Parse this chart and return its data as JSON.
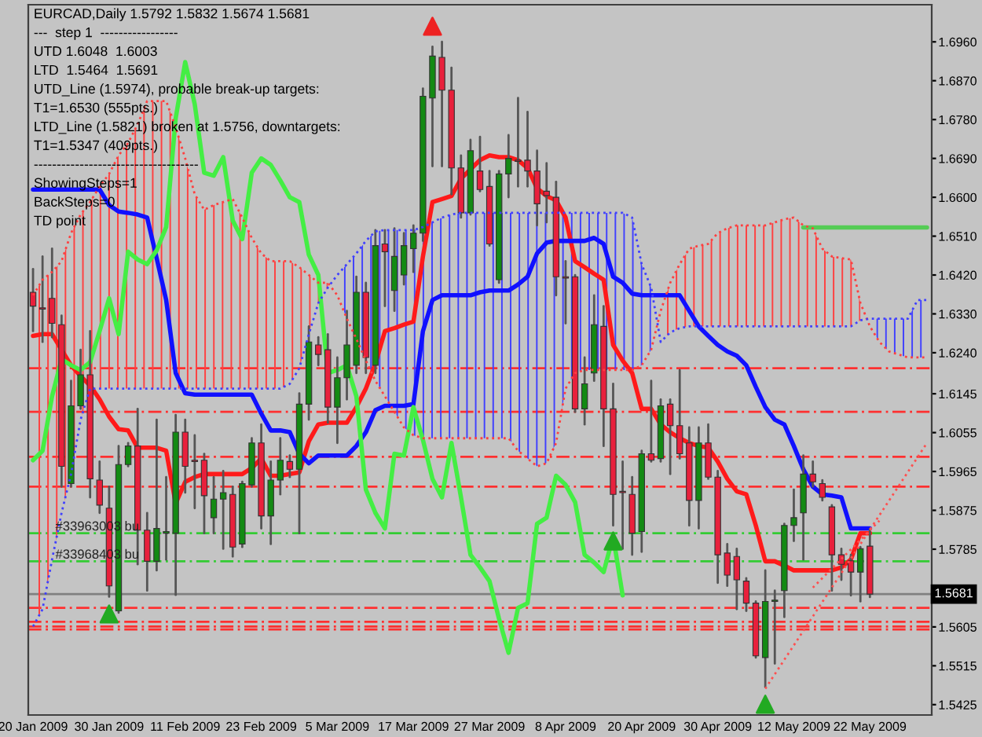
{
  "chart_data": {
    "type": "candlestick",
    "title": "EURCAD,Daily 1.5792 1.5832 1.5674 1.5681",
    "annotations": [
      "---  step 1  -----------------",
      "UTD 1.6048  1.6003",
      "LTD  1.5464  1.5691",
      "UTD_Line (1.5974), probable break-up targets:",
      "T1=1.6530 (555pts.)",
      "LTD_Line (1.5821) broken at 1.5756, downtargets:",
      "T1=1.5347 (409pts.)",
      "------------------------------------",
      "ShowingSteps=1",
      "BackSteps=0",
      "TD point",
      {
        "text": "#33963003 bu",
        "y": 1.5822
      },
      {
        "text": "#33968403 bu",
        "y": 1.5757
      }
    ],
    "categories": [
      "20 Jan 2009",
      null,
      null,
      null,
      null,
      null,
      null,
      null,
      "30 Jan 2009",
      null,
      null,
      null,
      null,
      null,
      null,
      null,
      "11 Feb 2009",
      null,
      null,
      null,
      null,
      null,
      null,
      null,
      "23 Feb 2009",
      null,
      null,
      null,
      null,
      null,
      null,
      null,
      "5 Mar 2009",
      null,
      null,
      null,
      null,
      null,
      null,
      null,
      "17 Mar 2009",
      null,
      null,
      null,
      null,
      null,
      null,
      null,
      "27 Mar 2009",
      null,
      null,
      null,
      null,
      null,
      null,
      null,
      "8 Apr 2009",
      null,
      null,
      null,
      null,
      null,
      null,
      null,
      "20 Apr 2009",
      null,
      null,
      null,
      null,
      null,
      null,
      null,
      "30 Apr 2009",
      null,
      null,
      null,
      null,
      null,
      null,
      null,
      "12 May 2009",
      null,
      null,
      null,
      null,
      null,
      null,
      null,
      "22 May 2009",
      null,
      null,
      null,
      null,
      null,
      null
    ],
    "ohlc": [
      [
        1.638,
        1.6434,
        1.629,
        1.6348
      ],
      [
        1.6344,
        1.6463,
        1.6265,
        1.6341
      ],
      [
        1.6366,
        1.6481,
        1.6276,
        1.6308
      ],
      [
        1.6305,
        1.6326,
        1.593,
        1.5977
      ],
      [
        1.5937,
        1.6175,
        1.593,
        1.6117
      ],
      [
        1.6117,
        1.6247,
        1.611,
        1.6189
      ],
      [
        1.6189,
        1.629,
        1.5905,
        1.5948
      ],
      [
        1.5945,
        1.5988,
        1.5869,
        1.5887
      ],
      [
        1.588,
        1.593,
        1.5675,
        1.57
      ],
      [
        1.5642,
        1.6024,
        1.5638,
        1.5981
      ],
      [
        1.5981,
        1.6031,
        1.5977,
        1.6024
      ],
      [
        1.6024,
        1.611,
        1.575,
        1.5829
      ],
      [
        1.5829,
        1.5869,
        1.5689,
        1.5757
      ],
      [
        1.5757,
        1.6085,
        1.5736,
        1.5833
      ],
      [
        1.5822,
        1.5952,
        1.5761,
        1.5826
      ],
      [
        1.5822,
        1.6096,
        1.5679,
        1.6056
      ],
      [
        1.6056,
        1.6085,
        1.5916,
        1.5977
      ],
      [
        1.5991,
        1.6049,
        1.588,
        1.5988
      ],
      [
        1.5991,
        1.6006,
        1.5822,
        1.5909
      ],
      [
        1.5858,
        1.5952,
        1.5822,
        1.5901
      ],
      [
        1.5901,
        1.5966,
        1.5786,
        1.5916
      ],
      [
        1.5912,
        1.593,
        1.5768,
        1.579
      ],
      [
        1.5797,
        1.5941,
        1.579,
        1.5937
      ],
      [
        1.5934,
        1.6042,
        1.593,
        1.6031
      ],
      [
        1.6031,
        1.6074,
        1.5833,
        1.5862
      ],
      [
        1.5862,
        1.5988,
        1.5797,
        1.5945
      ],
      [
        1.5945,
        1.6042,
        1.5912,
        1.5991
      ],
      [
        1.5988,
        1.6002,
        1.5952,
        1.597
      ],
      [
        1.597,
        1.6146,
        1.5822,
        1.6121
      ],
      [
        1.6121,
        1.6301,
        1.6085,
        1.6265
      ],
      [
        1.6258,
        1.6276,
        1.6211,
        1.6236
      ],
      [
        1.6247,
        1.6283,
        1.6078,
        1.6114
      ],
      [
        1.6114,
        1.6229,
        1.6031,
        1.6182
      ],
      [
        1.6182,
        1.6337,
        1.6132,
        1.6258
      ],
      [
        1.6211,
        1.6416,
        1.6193,
        1.638
      ],
      [
        1.638,
        1.6402,
        1.6193,
        1.6229
      ],
      [
        1.6211,
        1.6524,
        1.6193,
        1.6488
      ],
      [
        1.6492,
        1.6524,
        1.6348,
        1.6474
      ],
      [
        1.6384,
        1.6528,
        1.6337,
        1.6463
      ],
      [
        1.642,
        1.6517,
        1.6398,
        1.6488
      ],
      [
        1.6481,
        1.6535,
        1.6427,
        1.6517
      ],
      [
        1.6517,
        1.6852,
        1.6499,
        1.6834
      ],
      [
        1.683,
        1.6949,
        1.6672,
        1.6927
      ],
      [
        1.6924,
        1.696,
        1.6672,
        1.6848
      ],
      [
        1.6848,
        1.69,
        1.6607,
        1.6668
      ],
      [
        1.6668,
        1.6697,
        1.6553,
        1.6564
      ],
      [
        1.6564,
        1.6733,
        1.656,
        1.6708
      ],
      [
        1.6661,
        1.674,
        1.6614,
        1.6618
      ],
      [
        1.6625,
        1.6661,
        1.6488,
        1.6492
      ],
      [
        1.6409,
        1.6661,
        1.6402,
        1.6654
      ],
      [
        1.6654,
        1.6744,
        1.66,
        1.669
      ],
      [
        1.6686,
        1.683,
        1.6625,
        1.6683
      ],
      [
        1.6686,
        1.6798,
        1.6625,
        1.6661
      ],
      [
        1.6661,
        1.6708,
        1.6535,
        1.6585
      ],
      [
        1.6614,
        1.6679,
        1.6542,
        1.6604
      ],
      [
        1.66,
        1.6636,
        1.6373,
        1.6416
      ],
      [
        1.6416,
        1.6452,
        1.6308,
        1.6413
      ],
      [
        1.6416,
        1.642,
        1.6103,
        1.611
      ],
      [
        1.611,
        1.6229,
        1.6074,
        1.6168
      ],
      [
        1.6193,
        1.6373,
        1.6175,
        1.6305
      ],
      [
        1.6301,
        1.6348,
        1.6024,
        1.611
      ],
      [
        1.611,
        1.6168,
        1.584,
        1.5912
      ],
      [
        1.5919,
        1.5988,
        1.5786,
        1.5916
      ],
      [
        1.5912,
        1.5952,
        1.5772,
        1.5822
      ],
      [
        1.5826,
        1.6013,
        1.5779,
        1.6006
      ],
      [
        1.6006,
        1.6175,
        1.5988,
        1.5991
      ],
      [
        1.5995,
        1.6132,
        1.5988,
        1.6117
      ],
      [
        1.6121,
        1.6132,
        1.5959,
        1.6071
      ],
      [
        1.6071,
        1.62,
        1.5995,
        1.6006
      ],
      [
        1.6031,
        1.6067,
        1.584,
        1.5898
      ],
      [
        1.5898,
        1.6067,
        1.5833,
        1.6031
      ],
      [
        1.6031,
        1.6074,
        1.5948,
        1.5952
      ],
      [
        1.5952,
        1.5966,
        1.5707,
        1.5772
      ],
      [
        1.5776,
        1.5797,
        1.57,
        1.5725
      ],
      [
        1.5768,
        1.5786,
        1.5646,
        1.5714
      ],
      [
        1.5711,
        1.5718,
        1.5642,
        1.566
      ],
      [
        1.566,
        1.5664,
        1.5534,
        1.5538
      ],
      [
        1.5534,
        1.5736,
        1.5466,
        1.5664
      ],
      [
        1.5664,
        1.5689,
        1.552,
        1.5667
      ],
      [
        1.5689,
        1.5844,
        1.5628,
        1.584
      ],
      [
        1.584,
        1.5923,
        1.5804,
        1.5858
      ],
      [
        1.5869,
        1.6002,
        1.5761,
        1.5959
      ],
      [
        1.5959,
        1.5988,
        1.593,
        1.5941
      ],
      [
        1.5937,
        1.5945,
        1.5898,
        1.5905
      ],
      [
        1.5883,
        1.5887,
        1.5689,
        1.5772
      ],
      [
        1.5772,
        1.5786,
        1.5714,
        1.575
      ],
      [
        1.5758,
        1.5772,
        1.5678,
        1.5732
      ],
      [
        1.5732,
        1.579,
        1.5664,
        1.5786
      ],
      [
        1.5792,
        1.5832,
        1.5674,
        1.5681
      ],
      null,
      null,
      null,
      null,
      null,
      null
    ],
    "colors": [
      "#e8203c",
      "#e8203c",
      "#e8203c",
      "#e8203c",
      "#138a13",
      "#138a13",
      "#e8203c",
      "#e8203c",
      "#e8203c",
      "#138a13",
      "#138a13",
      "#e8203c",
      "#e8203c",
      "#138a13",
      "#138a13",
      "#138a13",
      "#e8203c",
      "#e8203c",
      "#e8203c",
      "#138a13",
      "#138a13",
      "#e8203c",
      "#138a13",
      "#138a13",
      "#e8203c",
      "#138a13",
      "#138a13",
      "#e8203c",
      "#138a13",
      "#138a13",
      "#e8203c",
      "#e8203c",
      "#138a13",
      "#138a13",
      "#138a13",
      "#e8203c",
      "#138a13",
      "#e8203c",
      "#138a13",
      "#138a13",
      "#138a13",
      "#138a13",
      "#138a13",
      "#e8203c",
      "#e8203c",
      "#e8203c",
      "#138a13",
      "#e8203c",
      "#e8203c",
      "#138a13",
      "#138a13",
      "#e8203c",
      "#e8203c",
      "#e8203c",
      "#e8203c",
      "#e8203c",
      "#e8203c",
      "#e8203c",
      "#138a13",
      "#138a13",
      "#e8203c",
      "#e8203c",
      "#e8203c",
      "#e8203c",
      "#138a13",
      "#e8203c",
      "#138a13",
      "#e8203c",
      "#e8203c",
      "#e8203c",
      "#138a13",
      "#e8203c",
      "#e8203c",
      "#e8203c",
      "#e8203c",
      "#e8203c",
      "#e8203c",
      "#138a13",
      "#138a13",
      "#138a13",
      "#138a13",
      "#138a13",
      "#e8203c",
      "#e8203c",
      "#e8203c",
      "#e8203c",
      "#e8203c",
      "#138a13",
      "#e8203c",
      null,
      null,
      null,
      null,
      null,
      null
    ],
    "series": [
      {
        "type": "line",
        "color": "#ff4040",
        "line_style": "dotted",
        "lower": [
          1.5606,
          1.5646,
          1.5761,
          1.5869,
          1.5959,
          1.6085,
          1.6157,
          1.6157,
          1.6157,
          1.6157,
          1.6157,
          1.6157,
          1.6157,
          1.6157,
          1.6157,
          1.6157,
          1.6157,
          1.6157,
          1.6157,
          1.6157,
          1.6157,
          1.6157,
          1.6157,
          1.6157,
          1.6157,
          1.6157,
          1.6157,
          1.6168,
          1.6204,
          1.6283,
          1.6355,
          1.6391,
          null,
          null,
          null,
          null,
          null,
          null,
          null,
          null,
          null,
          null,
          null,
          null,
          null,
          null,
          null,
          null,
          null,
          null,
          null,
          null,
          null,
          null,
          null,
          null,
          null,
          null,
          null,
          null,
          null,
          null,
          null,
          null,
          null,
          null,
          1.6265,
          1.6287,
          1.6297,
          1.6301,
          1.6301,
          1.6301,
          1.6301,
          1.6301,
          1.6301,
          1.6301,
          1.6301,
          1.6301,
          1.6301,
          1.6301,
          1.6301,
          1.6301,
          1.6301,
          1.6301,
          1.6301,
          1.6301,
          1.6301,
          1.6315,
          null,
          null,
          null,
          null,
          null,
          null,
          null
        ],
        "upper": [
          1.6373,
          1.6409,
          1.6427,
          1.6452,
          1.6517,
          1.656,
          1.6589,
          1.6625,
          1.6654,
          1.6697,
          1.6726,
          1.6769,
          1.6823,
          1.6823,
          1.6823,
          1.6762,
          1.669,
          1.6607,
          1.6571,
          1.6582,
          1.6589,
          1.6596,
          1.6553,
          1.6506,
          1.647,
          1.6452,
          1.6452,
          1.6452,
          1.6438,
          1.642,
          1.6402,
          1.6402,
          null,
          null,
          null,
          null,
          null,
          null,
          null,
          null,
          null,
          null,
          null,
          null,
          null,
          null,
          null,
          null,
          null,
          null,
          null,
          null,
          null,
          null,
          null,
          null,
          null,
          null,
          null,
          null,
          null,
          null,
          null,
          null,
          null,
          null,
          1.6337,
          1.6402,
          1.6445,
          1.6481,
          1.6488,
          1.6492,
          1.6517,
          1.6528,
          1.6535,
          1.6535,
          1.6535,
          1.6535,
          1.6542,
          1.6549,
          1.6553,
          1.6535,
          1.6528,
          1.6481,
          1.6463,
          1.6459,
          1.6456,
          1.6355,
          null,
          null,
          null,
          null,
          null,
          null,
          null
        ],
        "values": [
          1.6373,
          1.6409,
          1.6427,
          1.6452,
          1.6517,
          1.656,
          1.6589,
          1.6625,
          1.6654,
          1.6697,
          1.6726,
          1.6769,
          1.6823,
          1.6823,
          1.6823,
          1.6762,
          1.669,
          1.6607,
          1.6571,
          1.6582,
          1.6589,
          1.6596,
          1.6553,
          1.6506,
          1.647,
          1.6452,
          1.6452,
          1.6452,
          1.6438,
          1.642,
          1.6402,
          1.6402,
          1.6373,
          1.6319,
          1.6272,
          1.6222,
          1.6175,
          1.6139,
          1.6103,
          1.6067,
          1.6049,
          1.6042,
          1.6042,
          1.6042,
          1.6042,
          1.6042,
          1.6042,
          1.6042,
          1.6042,
          1.6042,
          1.6042,
          1.6013,
          1.5995,
          1.5977,
          1.5984,
          1.6031,
          1.6157,
          1.6193,
          1.62,
          1.62,
          1.62,
          1.62,
          1.62,
          1.62,
          1.6211,
          1.6247,
          1.6337,
          1.6402,
          1.6445,
          1.6481,
          1.6488,
          1.6492,
          1.6517,
          1.6528,
          1.6535,
          1.6535,
          1.6535,
          1.6535,
          1.6542,
          1.6549,
          1.6553,
          1.6535,
          1.6528,
          1.6481,
          1.6463,
          1.6459,
          1.6456,
          1.6355,
          1.6301,
          1.6265,
          1.6243,
          1.6236,
          1.6229,
          1.6229,
          1.6229
        ]
      },
      {
        "type": "line",
        "color": "#4040ff",
        "line_style": "dotted",
        "lower": [
          null,
          null,
          null,
          null,
          null,
          null,
          null,
          null,
          null,
          null,
          null,
          null,
          null,
          null,
          null,
          null,
          null,
          null,
          null,
          null,
          null,
          null,
          null,
          null,
          null,
          null,
          null,
          null,
          null,
          null,
          null,
          null,
          1.6373,
          1.6319,
          1.6272,
          1.6222,
          1.6175,
          1.6139,
          1.6103,
          1.6067,
          1.6049,
          1.6042,
          1.6042,
          1.6042,
          1.6042,
          1.6042,
          1.6042,
          1.6042,
          1.6042,
          1.6042,
          1.6042,
          1.6013,
          1.5995,
          1.5977,
          1.5984,
          1.6031,
          1.6157,
          1.6193,
          1.62,
          1.62,
          1.62,
          1.62,
          1.62,
          1.62,
          1.6211,
          1.6247,
          null,
          null,
          null,
          null,
          null,
          null,
          null,
          null,
          null,
          null,
          null,
          null,
          null,
          null,
          null,
          null,
          null,
          null,
          null,
          null,
          null,
          null,
          1.6301,
          1.6265,
          1.6243,
          1.6236,
          1.6229,
          1.6229,
          1.6229
        ],
        "upper": [
          null,
          null,
          null,
          null,
          null,
          null,
          null,
          null,
          null,
          null,
          null,
          null,
          null,
          null,
          null,
          null,
          null,
          null,
          null,
          null,
          null,
          null,
          null,
          null,
          null,
          null,
          null,
          null,
          null,
          null,
          null,
          null,
          1.642,
          1.6445,
          1.647,
          1.6499,
          1.6521,
          1.6524,
          1.6524,
          1.6524,
          1.6524,
          1.6531,
          1.6542,
          1.6553,
          1.656,
          1.6564,
          1.6564,
          1.6564,
          1.6564,
          1.6564,
          1.6564,
          1.6564,
          1.6564,
          1.6564,
          1.6564,
          1.6564,
          1.6564,
          1.6564,
          1.6564,
          1.6564,
          1.6564,
          1.6564,
          1.6564,
          1.6553,
          1.6445,
          1.6391,
          null,
          null,
          null,
          null,
          null,
          null,
          null,
          null,
          null,
          null,
          null,
          null,
          null,
          null,
          null,
          null,
          null,
          null,
          null,
          null,
          null,
          null,
          1.6319,
          1.6319,
          1.6319,
          1.6319,
          1.6319,
          1.6362,
          1.6362
        ],
        "values": [
          1.5606,
          1.5646,
          1.5761,
          1.5869,
          1.5959,
          1.6085,
          1.6157,
          1.6157,
          1.6157,
          1.6157,
          1.6157,
          1.6157,
          1.6157,
          1.6157,
          1.6157,
          1.6157,
          1.6157,
          1.6157,
          1.6157,
          1.6157,
          1.6157,
          1.6157,
          1.6157,
          1.6157,
          1.6157,
          1.6157,
          1.6157,
          1.6168,
          1.6204,
          1.6283,
          1.6355,
          1.6391,
          1.642,
          1.6445,
          1.647,
          1.6499,
          1.6521,
          1.6524,
          1.6524,
          1.6524,
          1.6524,
          1.6531,
          1.6542,
          1.6553,
          1.656,
          1.6564,
          1.6564,
          1.6564,
          1.6564,
          1.6564,
          1.6564,
          1.6564,
          1.6564,
          1.6564,
          1.6564,
          1.6564,
          1.6564,
          1.6564,
          1.6564,
          1.6564,
          1.6564,
          1.6564,
          1.6564,
          1.6553,
          1.6445,
          1.6391,
          1.6265,
          1.6287,
          1.6297,
          1.6301,
          1.6301,
          1.6301,
          1.6301,
          1.6301,
          1.6301,
          1.6301,
          1.6301,
          1.6301,
          1.6301,
          1.6301,
          1.6301,
          1.6301,
          1.6301,
          1.6301,
          1.6301,
          1.6301,
          1.6301,
          1.6315,
          1.6319,
          1.6319,
          1.6319,
          1.6319,
          1.6319,
          1.6362,
          1.6362
        ]
      },
      {
        "type": "line",
        "color": "#ff1a1a",
        "values": [
          1.6279,
          1.6283,
          1.6283,
          1.6247,
          1.6211,
          1.6186,
          1.6164,
          1.6132,
          1.6092,
          1.6063,
          1.606,
          1.602,
          1.602,
          1.602,
          1.6013,
          1.5891,
          1.5941,
          1.5952,
          1.5959,
          1.5959,
          1.5959,
          1.5959,
          1.5959,
          1.5973,
          1.5995,
          1.5955,
          1.5955,
          1.5959,
          1.5963,
          1.6035,
          1.6074,
          1.6078,
          1.6078,
          1.6078,
          1.6114,
          1.6157,
          1.6215,
          1.629,
          1.6297,
          1.6305,
          1.6312,
          1.6463,
          1.6589,
          1.6596,
          1.6603,
          1.6643,
          1.6665,
          1.6686,
          1.6697,
          1.6693,
          1.6693,
          1.6686,
          1.6668,
          1.6621,
          1.6603,
          1.6593,
          1.6553,
          1.6452,
          1.6438,
          1.6423,
          1.6409,
          1.6258,
          1.6222,
          1.6193,
          1.611,
          1.611,
          1.6074,
          1.6056,
          1.6042,
          1.6031,
          1.6024,
          1.602,
          1.5988,
          1.5948,
          1.5919,
          1.5912,
          1.584,
          1.5757,
          1.5757,
          1.5747,
          1.5736,
          1.5736,
          1.5736,
          1.5736,
          1.5736,
          1.5743,
          1.5761,
          1.5822,
          1.5822,
          null,
          null,
          null,
          null,
          null,
          null
        ]
      },
      {
        "type": "line",
        "color": "#1010ff",
        "values": [
          1.6618,
          1.6618,
          1.6618,
          1.6618,
          1.6618,
          1.6618,
          1.6618,
          1.6618,
          1.6582,
          1.6567,
          1.6564,
          1.656,
          1.6553,
          1.6459,
          1.6362,
          1.6193,
          1.6146,
          1.6143,
          1.6143,
          1.6143,
          1.6143,
          1.6143,
          1.6143,
          1.6143,
          1.6099,
          1.606,
          1.606,
          1.6056,
          1.6006,
          1.5984,
          1.6002,
          1.6002,
          1.6002,
          1.6002,
          1.6024,
          1.6056,
          1.6107,
          1.6117,
          1.6117,
          1.6117,
          1.6121,
          1.629,
          1.6362,
          1.6373,
          1.6373,
          1.6373,
          1.6373,
          1.638,
          1.6384,
          1.6384,
          1.6384,
          1.6398,
          1.6416,
          1.647,
          1.6495,
          1.6499,
          1.6499,
          1.6499,
          1.6499,
          1.6506,
          1.6492,
          1.6416,
          1.6402,
          1.6377,
          1.6373,
          1.6373,
          1.6373,
          1.6373,
          1.6373,
          1.6337,
          1.6301,
          1.6279,
          1.6258,
          1.6243,
          1.6233,
          1.6211,
          1.6161,
          1.6114,
          1.6085,
          1.6074,
          1.6024,
          1.597,
          1.593,
          1.5912,
          1.5909,
          1.5905,
          1.5833,
          1.5833,
          1.5833,
          null,
          null,
          null,
          null,
          null,
          null
        ]
      },
      {
        "type": "line",
        "color": "#44ee44",
        "values": [
          1.5991,
          1.6013,
          1.6139,
          1.6225,
          1.6211,
          1.62,
          1.6218,
          1.629,
          1.6366,
          1.6283,
          1.6474,
          1.6456,
          1.6445,
          1.6477,
          1.6531,
          1.6783,
          1.6913,
          1.6816,
          1.6657,
          1.665,
          1.6693,
          1.6546,
          1.6503,
          1.6657,
          1.669,
          1.6675,
          1.6639,
          1.66,
          1.6589,
          1.6467,
          1.642,
          1.6193,
          1.62,
          1.6211,
          1.6139,
          1.5923,
          1.5869,
          1.5833,
          1.6006,
          1.6002,
          1.6114,
          1.6038,
          1.5948,
          1.5905,
          1.6031,
          1.5905,
          1.5772,
          1.5743,
          1.5711,
          1.5624,
          1.5545,
          1.5649,
          1.566,
          1.5844,
          1.5858,
          1.5955,
          1.5934,
          1.5894,
          1.5772,
          1.5754,
          1.5732,
          1.5815,
          1.5678,
          null,
          null,
          null,
          null,
          null,
          null,
          null,
          null,
          null,
          null,
          null,
          null,
          null,
          null,
          null,
          null,
          null,
          null,
          null,
          null,
          null,
          null,
          null,
          null,
          null,
          null,
          null,
          null,
          null,
          null,
          null,
          null
        ]
      },
      {
        "type": "line",
        "color": "#55cc55",
        "values": [
          null,
          null,
          null,
          null,
          null,
          null,
          null,
          null,
          null,
          null,
          null,
          null,
          null,
          null,
          null,
          null,
          null,
          null,
          null,
          null,
          null,
          null,
          null,
          null,
          null,
          null,
          null,
          null,
          null,
          null,
          null,
          null,
          null,
          null,
          null,
          null,
          null,
          null,
          null,
          null,
          null,
          null,
          null,
          null,
          null,
          null,
          null,
          null,
          null,
          null,
          null,
          null,
          null,
          null,
          null,
          null,
          null,
          null,
          null,
          null,
          null,
          null,
          null,
          null,
          null,
          null,
          null,
          null,
          null,
          null,
          null,
          null,
          null,
          null,
          null,
          null,
          null,
          null,
          null,
          null,
          null,
          1.653,
          1.653,
          1.653,
          1.653,
          1.653,
          1.653,
          1.653,
          1.653,
          1.653,
          1.653,
          1.653,
          1.653,
          1.653,
          1.653
        ]
      },
      {
        "type": "line",
        "color": "#ff5050",
        "line_style": "dotted",
        "values": [
          null,
          null,
          null,
          null,
          null,
          null,
          null,
          null,
          null,
          null,
          null,
          null,
          null,
          null,
          null,
          null,
          null,
          null,
          null,
          null,
          null,
          null,
          null,
          null,
          null,
          null,
          null,
          null,
          null,
          null,
          null,
          null,
          null,
          null,
          null,
          null,
          null,
          null,
          null,
          null,
          null,
          null,
          null,
          null,
          null,
          null,
          null,
          null,
          null,
          null,
          null,
          null,
          null,
          null,
          null,
          null,
          null,
          null,
          null,
          null,
          null,
          null,
          null,
          null,
          null,
          null,
          null,
          null,
          null,
          null,
          null,
          null,
          null,
          null,
          null,
          null,
          null,
          1.5462,
          null,
          null,
          null,
          null,
          null,
          null,
          null,
          null,
          null,
          null,
          null,
          null,
          null,
          null,
          null,
          null,
          1.6031
        ]
      },
      {
        "type": "line",
        "color": "#ff5050",
        "line_style": "dotted",
        "values": [
          null,
          null,
          null,
          null,
          null,
          null,
          null,
          null,
          null,
          null,
          null,
          null,
          null,
          null,
          null,
          null,
          null,
          null,
          null,
          null,
          null,
          null,
          null,
          null,
          null,
          null,
          null,
          null,
          null,
          null,
          null,
          null,
          null,
          null,
          null,
          null,
          null,
          null,
          null,
          null,
          null,
          null,
          null,
          null,
          null,
          null,
          null,
          null,
          null,
          null,
          null,
          null,
          null,
          null,
          null,
          null,
          null,
          null,
          null,
          null,
          null,
          null,
          null,
          null,
          null,
          null,
          null,
          null,
          null,
          null,
          null,
          null,
          null,
          null,
          null,
          null,
          null,
          null,
          null,
          null,
          null,
          null,
          1.5696,
          null,
          null,
          null,
          null,
          null,
          null,
          1.5851,
          null,
          null,
          null,
          null,
          null
        ]
      },
      {
        "type": "scatter",
        "color": "#22aa22",
        "marker": "triangle",
        "values": [
          null,
          null,
          null,
          null,
          null,
          null,
          null,
          null,
          1.5635,
          null,
          null,
          null,
          null,
          null,
          null,
          null,
          null,
          null,
          null,
          null,
          null,
          null,
          null,
          null,
          null,
          null,
          null,
          null,
          null,
          null,
          null,
          null,
          null,
          null,
          null,
          null,
          null,
          null,
          null,
          null,
          null,
          null,
          null,
          null,
          null,
          null,
          null,
          null,
          null,
          null,
          null,
          null,
          null,
          null,
          null,
          null,
          null,
          null,
          null,
          null,
          null,
          1.5804,
          null,
          null,
          null,
          null,
          null,
          null,
          null,
          null,
          null,
          null,
          null,
          null,
          null,
          null,
          null,
          1.5426,
          null,
          null,
          null,
          null,
          null,
          null,
          null,
          null,
          null,
          null,
          null,
          null,
          null,
          null,
          null,
          null,
          null
        ]
      },
      {
        "type": "scatter",
        "color": "#ee2222",
        "marker": "triangle",
        "values": [
          null,
          null,
          null,
          null,
          null,
          null,
          null,
          null,
          null,
          null,
          null,
          null,
          null,
          null,
          null,
          null,
          null,
          null,
          null,
          null,
          null,
          null,
          null,
          null,
          null,
          null,
          null,
          null,
          null,
          null,
          null,
          null,
          null,
          null,
          null,
          null,
          null,
          null,
          null,
          null,
          null,
          null,
          1.6996,
          null,
          null,
          null,
          null,
          null,
          null,
          null,
          null,
          null,
          null,
          null,
          null,
          null,
          null,
          null,
          null,
          null,
          null,
          null,
          null,
          null,
          null,
          null,
          null,
          null,
          null,
          null,
          null,
          null,
          null,
          null,
          null,
          null,
          null,
          null,
          null,
          null,
          null,
          null,
          null,
          null,
          null,
          null,
          null,
          null,
          null,
          null,
          null,
          null,
          null,
          null,
          null
        ]
      }
    ],
    "ref_lines": [
      {
        "axis": "y",
        "value": 1.6204,
        "color": "#ff3030",
        "line_style": "dashed"
      },
      {
        "axis": "y",
        "value": 1.6103,
        "color": "#ff3030",
        "line_style": "dashed"
      },
      {
        "axis": "y",
        "value": 1.5999,
        "color": "#ff3030",
        "line_style": "dashed"
      },
      {
        "axis": "y",
        "value": 1.593,
        "color": "#ff3030",
        "line_style": "dashed"
      },
      {
        "axis": "y",
        "value": 1.5822,
        "color": "#33cc33",
        "line_style": "dashed"
      },
      {
        "axis": "y",
        "value": 1.5757,
        "color": "#33cc33",
        "line_style": "dashed"
      },
      {
        "axis": "y",
        "value": 1.5681,
        "color": "#808080",
        "line_style": "solid",
        "label": "1.5681"
      },
      {
        "axis": "y",
        "value": 1.5649,
        "color": "#ff3030",
        "line_style": "dashed"
      },
      {
        "axis": "y",
        "value": 1.5617,
        "color": "#ff3030",
        "line_style": "dashed"
      },
      {
        "axis": "y",
        "value": 1.5606,
        "color": "#ff3030",
        "line_style": "dashed"
      },
      {
        "axis": "y",
        "value": 1.5599,
        "color": "#ff3030",
        "line_style": "dashed"
      }
    ],
    "ylim": [
      1.5401,
      1.7046
    ],
    "yticks": [
      {
        "value": 1.696,
        "label": "1.6960"
      },
      {
        "value": 1.687,
        "label": "1.6870"
      },
      {
        "value": 1.678,
        "label": "1.6780"
      },
      {
        "value": 1.669,
        "label": "1.6690"
      },
      {
        "value": 1.66,
        "label": "1.6600"
      },
      {
        "value": 1.651,
        "label": "1.6510"
      },
      {
        "value": 1.642,
        "label": "1.6420"
      },
      {
        "value": 1.633,
        "label": "1.6330"
      },
      {
        "value": 1.624,
        "label": "1.6240"
      },
      {
        "value": 1.6145,
        "label": "1.6145"
      },
      {
        "value": 1.6055,
        "label": "1.6055"
      },
      {
        "value": 1.5965,
        "label": "1.5965"
      },
      {
        "value": 1.5875,
        "label": "1.5875"
      },
      {
        "value": 1.5785,
        "label": "1.5785"
      },
      {
        "value": 1.5605,
        "label": "1.5605"
      },
      {
        "value": 1.5515,
        "label": "1.5515"
      },
      {
        "value": 1.5425,
        "label": "1.5425"
      }
    ],
    "grid": false,
    "legend": false
  }
}
